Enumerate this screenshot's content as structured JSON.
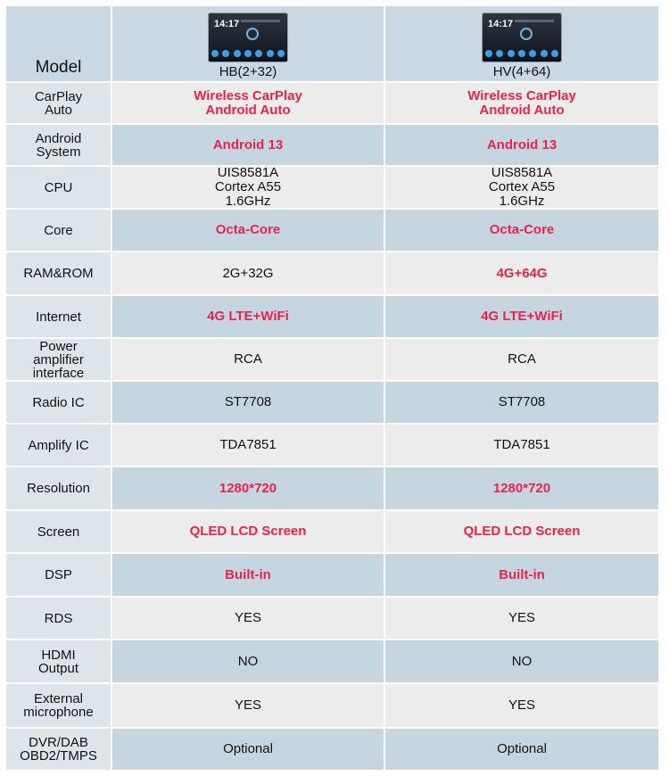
{
  "header": {
    "label": "Model",
    "models": [
      {
        "name": "HB(2+32)",
        "thumb_clock": "14:17"
      },
      {
        "name": "HV(4+64)",
        "thumb_clock": "14:17"
      }
    ]
  },
  "rows": [
    {
      "label": [
        "CarPlay",
        "Auto"
      ],
      "values": [
        [
          "Wireless CarPlay",
          "Android Auto"
        ],
        [
          "Wireless CarPlay",
          "Android Auto"
        ]
      ],
      "red": [
        true,
        true
      ]
    },
    {
      "label": [
        "Android",
        "System"
      ],
      "values": [
        [
          "Android 13"
        ],
        [
          "Android 13"
        ]
      ],
      "red": [
        true,
        true
      ]
    },
    {
      "label": [
        "CPU"
      ],
      "values": [
        [
          "UIS8581A",
          "Cortex A55",
          "1.6GHz"
        ],
        [
          "UIS8581A",
          "Cortex A55",
          "1.6GHz"
        ]
      ],
      "red": [
        false,
        false
      ]
    },
    {
      "label": [
        "Core"
      ],
      "values": [
        [
          "Octa-Core"
        ],
        [
          "Octa-Core"
        ]
      ],
      "red": [
        true,
        true
      ]
    },
    {
      "label": [
        "RAM&ROM"
      ],
      "values": [
        [
          "2G+32G"
        ],
        [
          "4G+64G"
        ]
      ],
      "red": [
        false,
        true
      ]
    },
    {
      "label": [
        "Internet"
      ],
      "values": [
        [
          "4G LTE+WiFi"
        ],
        [
          "4G LTE+WiFi"
        ]
      ],
      "red": [
        true,
        true
      ]
    },
    {
      "label": [
        "Power",
        "amplifier",
        "interface"
      ],
      "values": [
        [
          "RCA"
        ],
        [
          "RCA"
        ]
      ],
      "red": [
        false,
        false
      ]
    },
    {
      "label": [
        "Radio IC"
      ],
      "values": [
        [
          "ST7708"
        ],
        [
          "ST7708"
        ]
      ],
      "red": [
        false,
        false
      ]
    },
    {
      "label": [
        "Amplify IC"
      ],
      "values": [
        [
          "TDA7851"
        ],
        [
          "TDA7851"
        ]
      ],
      "red": [
        false,
        false
      ]
    },
    {
      "label": [
        "Resolution"
      ],
      "values": [
        [
          "1280*720"
        ],
        [
          "1280*720"
        ]
      ],
      "red": [
        true,
        true
      ]
    },
    {
      "label": [
        "Screen"
      ],
      "values": [
        [
          "QLED LCD Screen"
        ],
        [
          "QLED LCD Screen"
        ]
      ],
      "red": [
        true,
        true
      ]
    },
    {
      "label": [
        "DSP"
      ],
      "values": [
        [
          "Built-in"
        ],
        [
          "Built-in"
        ]
      ],
      "red": [
        true,
        true
      ]
    },
    {
      "label": [
        "RDS"
      ],
      "values": [
        [
          "YES"
        ],
        [
          "YES"
        ]
      ],
      "red": [
        false,
        false
      ]
    },
    {
      "label": [
        "HDMI",
        "Output"
      ],
      "values": [
        [
          "NO"
        ],
        [
          "NO"
        ]
      ],
      "red": [
        false,
        false
      ]
    },
    {
      "label": [
        "External",
        "microphone"
      ],
      "values": [
        [
          "YES"
        ],
        [
          "YES"
        ]
      ],
      "red": [
        false,
        false
      ]
    },
    {
      "label": [
        "DVR/DAB",
        "OBD2/TMPS"
      ],
      "values": [
        [
          "Optional"
        ],
        [
          "Optional"
        ]
      ],
      "red": [
        false,
        false
      ]
    }
  ],
  "colors": {
    "accent_red": "#e8234a",
    "row_blue": "#c6d6e1",
    "row_grey": "#ececec",
    "label_bg": "#dde4ea"
  }
}
